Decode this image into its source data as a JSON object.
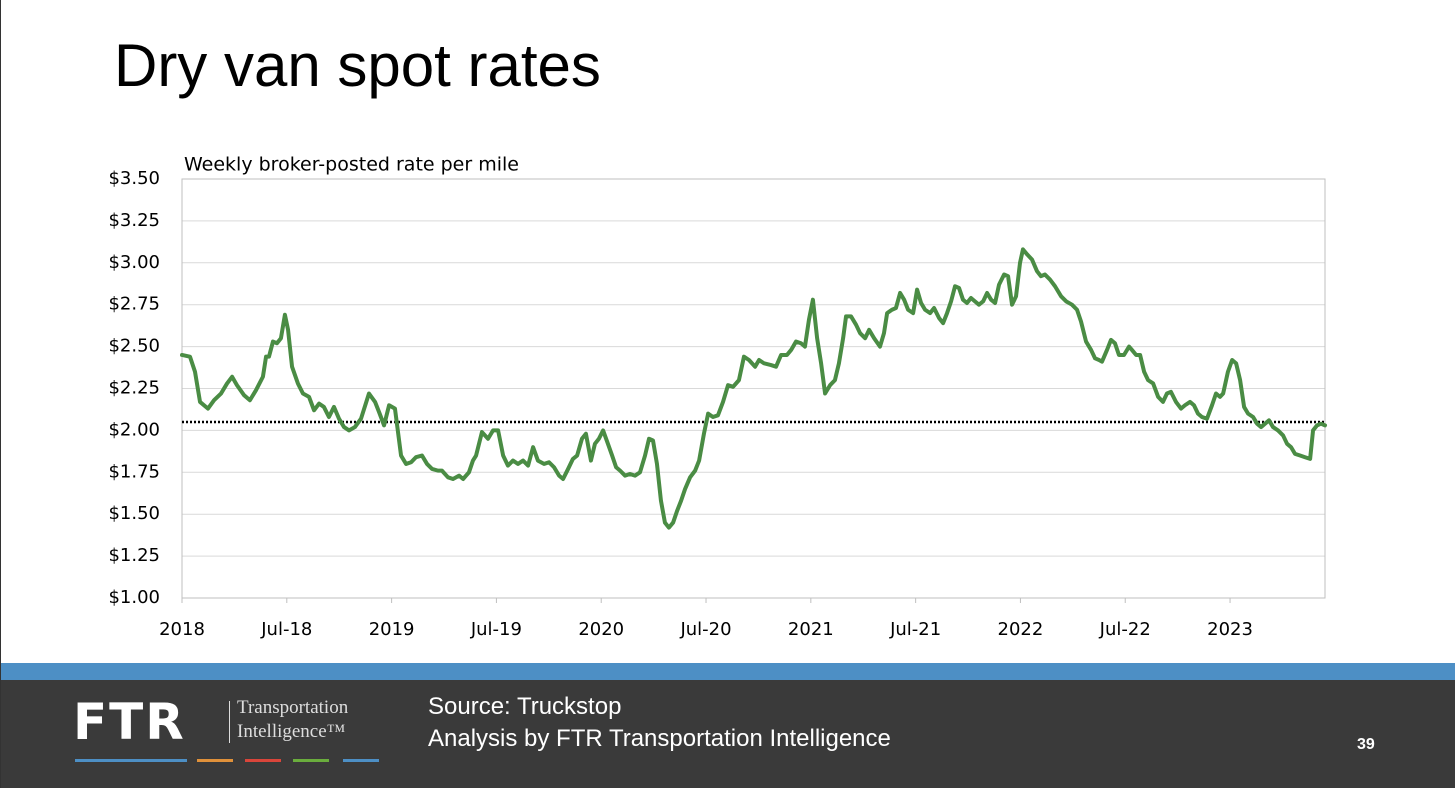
{
  "chart_data": {
    "type": "line",
    "title": "Dry van spot rates",
    "subtitle": "Weekly broker-posted rate per mile",
    "x": [
      2018.0,
      2018.038,
      2018.062,
      2018.086,
      2018.124,
      2018.153,
      2018.186,
      2018.215,
      2018.239,
      2018.262,
      2018.296,
      2018.324,
      2018.353,
      2018.386,
      2018.401,
      2018.415,
      2018.434,
      2018.453,
      2018.472,
      2018.491,
      2018.506,
      2018.525,
      2018.553,
      2018.577,
      2018.606,
      2018.63,
      2018.654,
      2018.677,
      2018.701,
      2018.725,
      2018.749,
      2018.773,
      2018.797,
      2018.825,
      2018.854,
      2018.892,
      2018.921,
      2018.94,
      2018.964,
      2018.988,
      2019.016,
      2019.045,
      2019.069,
      2019.093,
      2019.116,
      2019.145,
      2019.169,
      2019.193,
      2019.221,
      2019.24,
      2019.269,
      2019.293,
      2019.322,
      2019.341,
      2019.369,
      2019.388,
      2019.403,
      2019.431,
      2019.46,
      2019.484,
      2019.508,
      2019.532,
      2019.555,
      2019.579,
      2019.603,
      2019.627,
      2019.651,
      2019.675,
      2019.698,
      2019.727,
      2019.751,
      2019.775,
      2019.799,
      2019.818,
      2019.842,
      2019.865,
      2019.885,
      2019.908,
      2019.927,
      2019.951,
      2019.97,
      2019.989,
      2020.009,
      2020.032,
      2020.052,
      2020.071,
      2020.09,
      2020.114,
      2020.137,
      2020.161,
      2020.185,
      2020.209,
      2020.228,
      2020.247,
      2020.266,
      2020.285,
      2020.304,
      2020.323,
      2020.343,
      2020.362,
      2020.381,
      2020.4,
      2020.424,
      2020.448,
      2020.467,
      2020.49,
      2020.51,
      2020.533,
      2020.557,
      2020.581,
      2020.605,
      2020.629,
      2020.657,
      2020.681,
      2020.705,
      2020.734,
      2020.753,
      2020.777,
      2020.81,
      2020.834,
      2020.858,
      2020.886,
      2020.906,
      2020.929,
      2020.953,
      2020.972,
      2020.991,
      2021.01,
      2021.03,
      2021.049,
      2021.068,
      2021.092,
      2021.115,
      2021.134,
      2021.154,
      2021.168,
      2021.192,
      2021.216,
      2021.235,
      2021.259,
      2021.278,
      2021.302,
      2021.33,
      2021.349,
      2021.364,
      2021.387,
      2021.406,
      2021.426,
      2021.445,
      2021.464,
      2021.488,
      2021.507,
      2021.526,
      2021.545,
      2021.569,
      2021.588,
      2021.612,
      2021.631,
      2021.65,
      2021.669,
      2021.688,
      2021.707,
      2021.726,
      2021.745,
      2021.764,
      2021.783,
      2021.802,
      2021.822,
      2021.841,
      2021.86,
      2021.879,
      2021.898,
      2021.922,
      2021.941,
      2021.96,
      2021.979,
      2021.998,
      2022.012,
      2022.032,
      2022.055,
      2022.079,
      2022.098,
      2022.117,
      2022.141,
      2022.165,
      2022.194,
      2022.218,
      2022.246,
      2022.27,
      2022.289,
      2022.313,
      2022.337,
      2022.356,
      2022.375,
      2022.389,
      2022.413,
      2022.432,
      2022.451,
      2022.47,
      2022.494,
      2022.518,
      2022.532,
      2022.552,
      2022.571,
      2022.59,
      2022.609,
      2022.633,
      2022.657,
      2022.68,
      2022.699,
      2022.718,
      2022.742,
      2022.766,
      2022.785,
      2022.809,
      2022.828,
      2022.847,
      2022.866,
      2022.89,
      2022.914,
      2022.933,
      2022.952,
      2022.967,
      2022.99,
      2023.01,
      2023.029,
      2023.048,
      2023.067,
      2023.086,
      2023.11,
      2023.129,
      2023.148,
      2023.167,
      2023.186,
      2023.205,
      2023.229,
      2023.253,
      2023.272,
      2023.291,
      2023.31,
      2023.334,
      2023.358,
      2023.382,
      2023.396,
      2023.415,
      2023.434,
      2023.453
    ],
    "values": [
      2.45,
      2.44,
      2.35,
      2.17,
      2.13,
      2.18,
      2.22,
      2.28,
      2.32,
      2.27,
      2.21,
      2.18,
      2.24,
      2.32,
      2.44,
      2.44,
      2.53,
      2.52,
      2.55,
      2.69,
      2.6,
      2.38,
      2.28,
      2.22,
      2.2,
      2.12,
      2.16,
      2.14,
      2.08,
      2.14,
      2.07,
      2.02,
      2.0,
      2.02,
      2.07,
      2.22,
      2.17,
      2.11,
      2.03,
      2.15,
      2.13,
      1.85,
      1.8,
      1.81,
      1.84,
      1.85,
      1.8,
      1.77,
      1.76,
      1.76,
      1.72,
      1.71,
      1.73,
      1.71,
      1.75,
      1.82,
      1.85,
      1.99,
      1.95,
      2.0,
      2.0,
      1.85,
      1.79,
      1.82,
      1.8,
      1.82,
      1.79,
      1.9,
      1.82,
      1.8,
      1.81,
      1.78,
      1.73,
      1.71,
      1.77,
      1.83,
      1.85,
      1.95,
      1.98,
      1.82,
      1.92,
      1.95,
      2.0,
      1.92,
      1.85,
      1.78,
      1.76,
      1.73,
      1.74,
      1.73,
      1.75,
      1.85,
      1.95,
      1.94,
      1.8,
      1.58,
      1.45,
      1.42,
      1.45,
      1.52,
      1.58,
      1.65,
      1.72,
      1.76,
      1.82,
      1.98,
      2.1,
      2.08,
      2.09,
      2.17,
      2.27,
      2.26,
      2.3,
      2.44,
      2.42,
      2.38,
      2.42,
      2.4,
      2.39,
      2.38,
      2.45,
      2.45,
      2.48,
      2.53,
      2.52,
      2.5,
      2.66,
      2.78,
      2.55,
      2.4,
      2.22,
      2.27,
      2.3,
      2.4,
      2.55,
      2.68,
      2.68,
      2.63,
      2.58,
      2.55,
      2.6,
      2.55,
      2.5,
      2.58,
      2.7,
      2.72,
      2.73,
      2.82,
      2.78,
      2.72,
      2.7,
      2.84,
      2.76,
      2.72,
      2.7,
      2.73,
      2.67,
      2.64,
      2.7,
      2.77,
      2.86,
      2.85,
      2.78,
      2.76,
      2.79,
      2.77,
      2.75,
      2.77,
      2.82,
      2.78,
      2.76,
      2.87,
      2.93,
      2.92,
      2.75,
      2.8,
      3.0,
      3.08,
      3.05,
      3.02,
      2.95,
      2.92,
      2.93,
      2.9,
      2.86,
      2.8,
      2.77,
      2.75,
      2.72,
      2.65,
      2.53,
      2.48,
      2.43,
      2.42,
      2.41,
      2.48,
      2.54,
      2.52,
      2.45,
      2.45,
      2.5,
      2.48,
      2.45,
      2.45,
      2.35,
      2.3,
      2.28,
      2.2,
      2.17,
      2.22,
      2.23,
      2.17,
      2.13,
      2.15,
      2.17,
      2.15,
      2.1,
      2.08,
      2.07,
      2.15,
      2.22,
      2.2,
      2.22,
      2.35,
      2.42,
      2.4,
      2.3,
      2.14,
      2.1,
      2.08,
      2.04,
      2.02,
      2.04,
      2.06,
      2.02,
      2.0,
      1.97,
      1.92,
      1.9,
      1.86,
      1.85,
      1.84,
      1.83,
      2.0,
      2.03,
      2.04,
      2.03
    ],
    "color": "#4a8c44",
    "reference_line": 2.05,
    "xlim": [
      2018.0,
      2023.453
    ],
    "xticks": [
      {
        "value": 2018.0,
        "label": "2018"
      },
      {
        "value": 2018.5,
        "label": "Jul-18"
      },
      {
        "value": 2019.0,
        "label": "2019"
      },
      {
        "value": 2019.5,
        "label": "Jul-19"
      },
      {
        "value": 2020.0,
        "label": "2020"
      },
      {
        "value": 2020.5,
        "label": "Jul-20"
      },
      {
        "value": 2021.0,
        "label": "2021"
      },
      {
        "value": 2021.5,
        "label": "Jul-21"
      },
      {
        "value": 2022.0,
        "label": "2022"
      },
      {
        "value": 2022.5,
        "label": "Jul-22"
      },
      {
        "value": 2023.0,
        "label": "2023"
      }
    ],
    "ylim": [
      1.0,
      3.5
    ],
    "yticks": [
      {
        "value": 1.0,
        "label": "$1.00"
      },
      {
        "value": 1.25,
        "label": "$1.25"
      },
      {
        "value": 1.5,
        "label": "$1.50"
      },
      {
        "value": 1.75,
        "label": "$1.75"
      },
      {
        "value": 2.0,
        "label": "$2.00"
      },
      {
        "value": 2.25,
        "label": "$2.25"
      },
      {
        "value": 2.5,
        "label": "$2.50"
      },
      {
        "value": 2.75,
        "label": "$2.75"
      },
      {
        "value": 3.0,
        "label": "$3.00"
      },
      {
        "value": 3.25,
        "label": "$3.25"
      },
      {
        "value": 3.5,
        "label": "$3.50"
      }
    ],
    "grid": true
  },
  "footer": {
    "logo": "FTR",
    "logo_line1": "Transportation",
    "logo_line2": "Intelligence™",
    "source": "Source: Truckstop",
    "analysis": "Analysis by FTR Transportation Intelligence",
    "page_number": "39"
  }
}
